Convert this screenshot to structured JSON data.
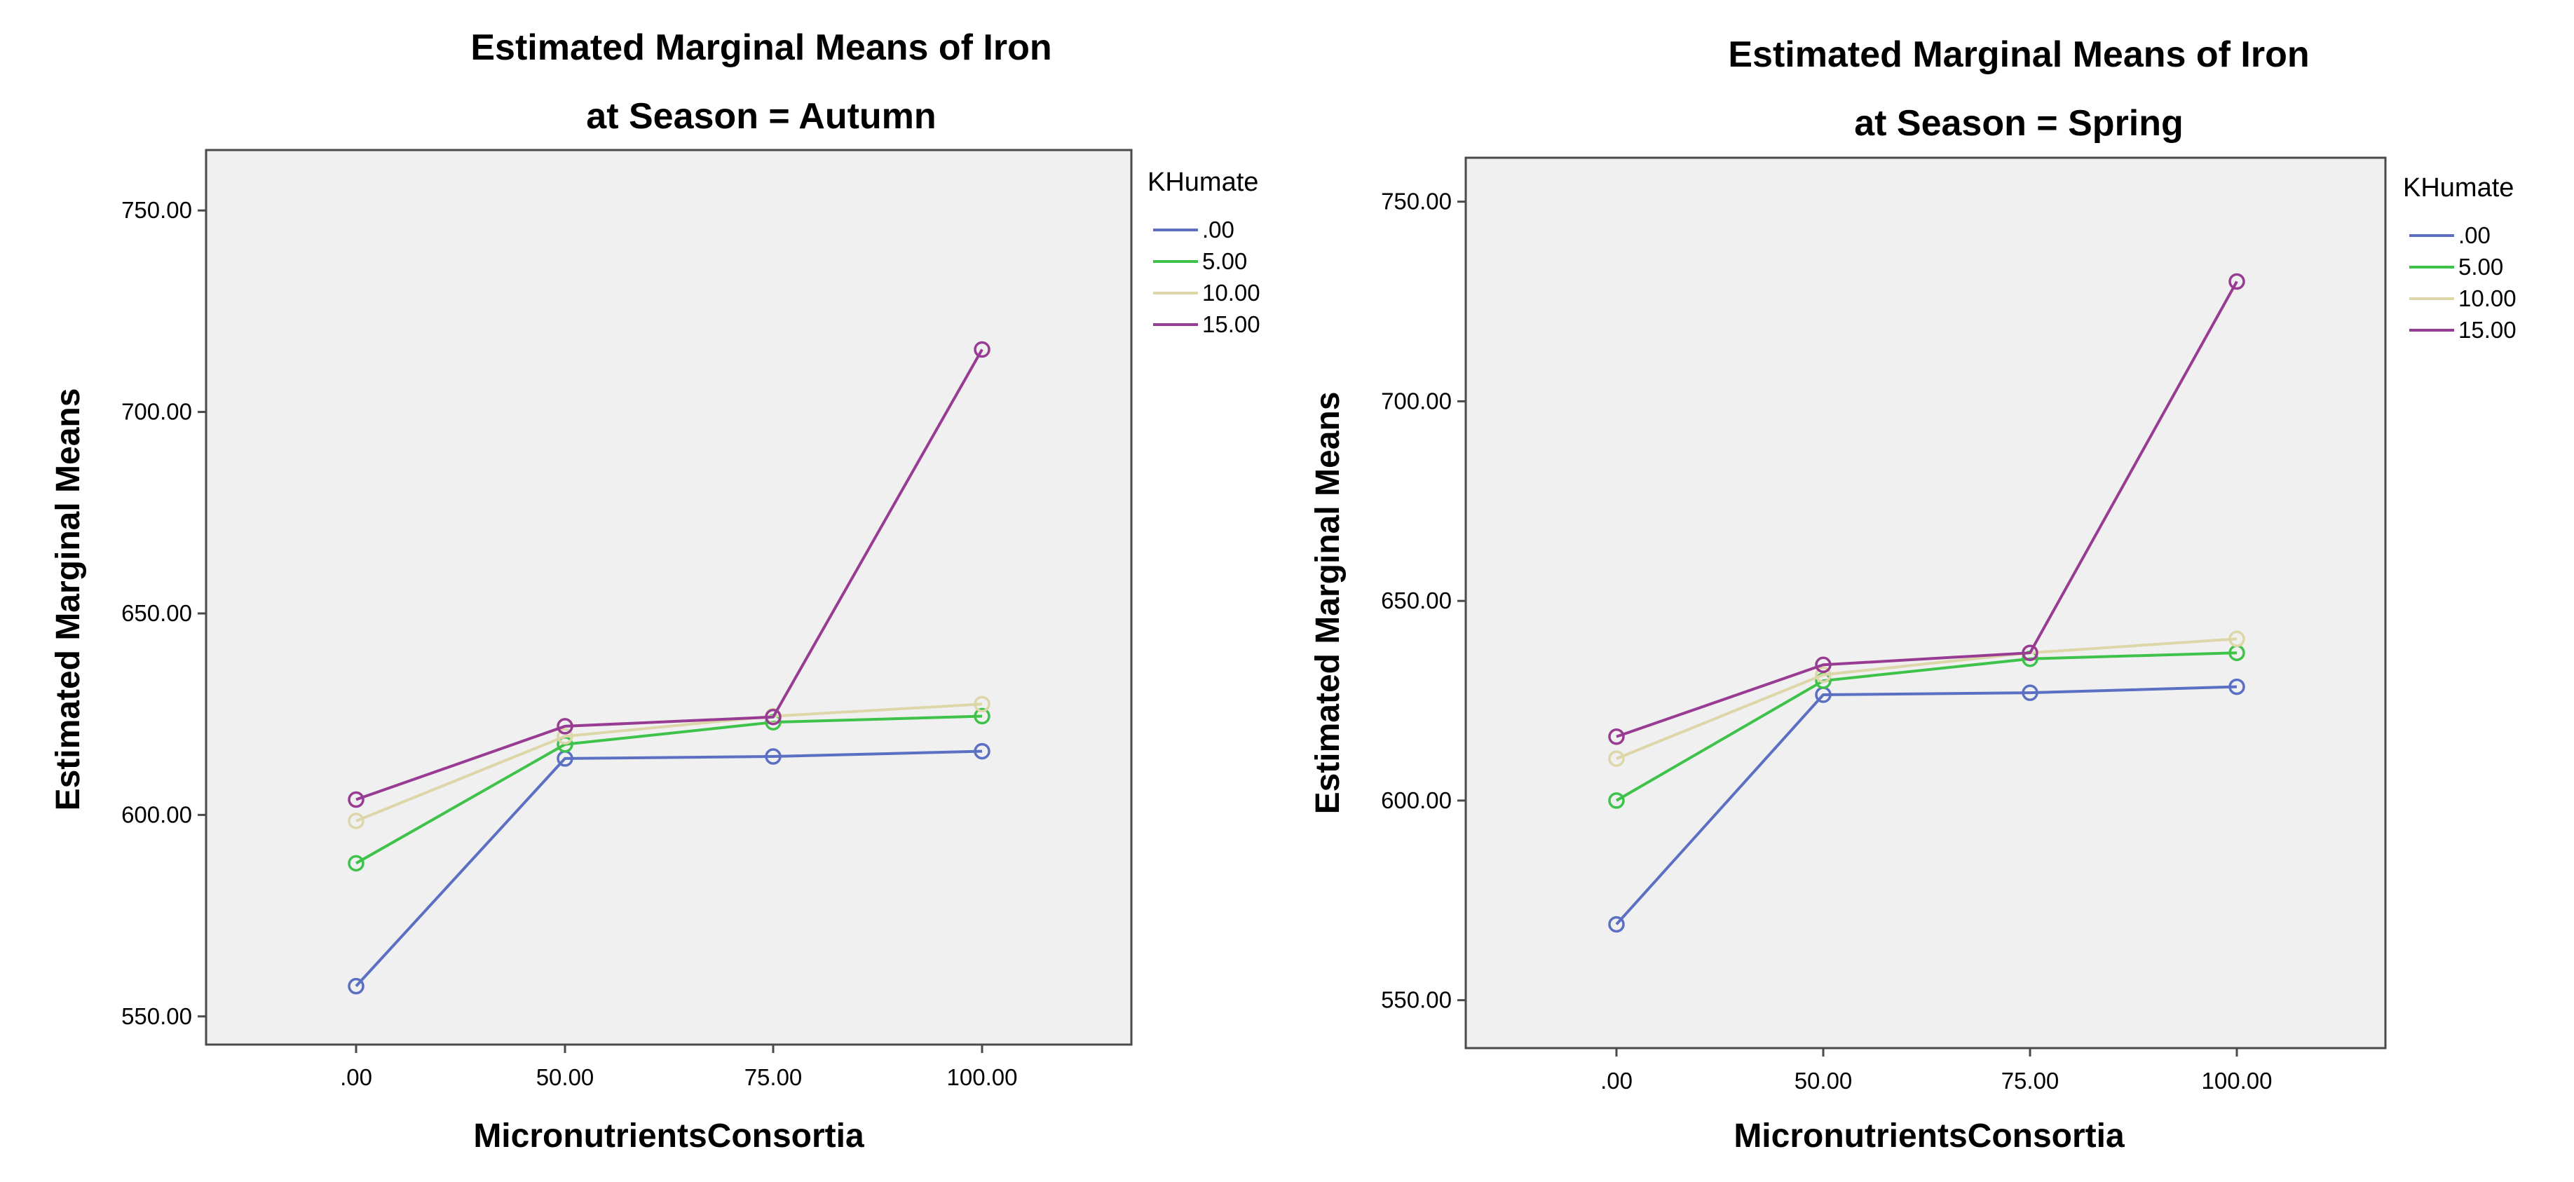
{
  "chart_data": [
    {
      "type": "line",
      "title": "Estimated Marginal Means of Iron",
      "subtitle": "at Season = Autumn",
      "xlabel": "MicronutrientsConsortia",
      "ylabel": "Estimated Marginal Means",
      "categories": [
        ".00",
        "50.00",
        "75.00",
        "100.00"
      ],
      "ylim": [
        543,
        765
      ],
      "yticks": [
        "550.00",
        "600.00",
        "650.00",
        "700.00",
        "750.00"
      ],
      "legend_title": "KHumate",
      "series": [
        {
          "name": ".00",
          "color": "#5b6fc3",
          "values": [
            557.5,
            614,
            614.5,
            615.8
          ]
        },
        {
          "name": "5.00",
          "color": "#3ec24a",
          "values": [
            588,
            617.5,
            623,
            624.5
          ]
        },
        {
          "name": "10.00",
          "color": "#ddd6a8",
          "values": [
            598.5,
            619.5,
            624.5,
            627.5
          ]
        },
        {
          "name": "15.00",
          "color": "#983b93",
          "values": [
            603.8,
            622,
            624.3,
            715.5
          ]
        }
      ]
    },
    {
      "type": "line",
      "title": "Estimated Marginal Means of Iron",
      "subtitle": "at Season = Spring",
      "xlabel": "MicronutrientsConsortia",
      "ylabel": "Estimated Marginal Means",
      "categories": [
        ".00",
        "50.00",
        "75.00",
        "100.00"
      ],
      "ylim": [
        538,
        761
      ],
      "yticks": [
        "550.00",
        "600.00",
        "650.00",
        "700.00",
        "750.00"
      ],
      "legend_title": "KHumate",
      "series": [
        {
          "name": ".00",
          "color": "#5b6fc3",
          "values": [
            569,
            626.5,
            627,
            628.5
          ]
        },
        {
          "name": "5.00",
          "color": "#3ec24a",
          "values": [
            600,
            630,
            635.5,
            637
          ]
        },
        {
          "name": "10.00",
          "color": "#ddd6a8",
          "values": [
            610.5,
            631.5,
            637,
            640.5
          ]
        },
        {
          "name": "15.00",
          "color": "#983b93",
          "values": [
            616,
            634,
            637,
            730
          ]
        }
      ]
    }
  ]
}
